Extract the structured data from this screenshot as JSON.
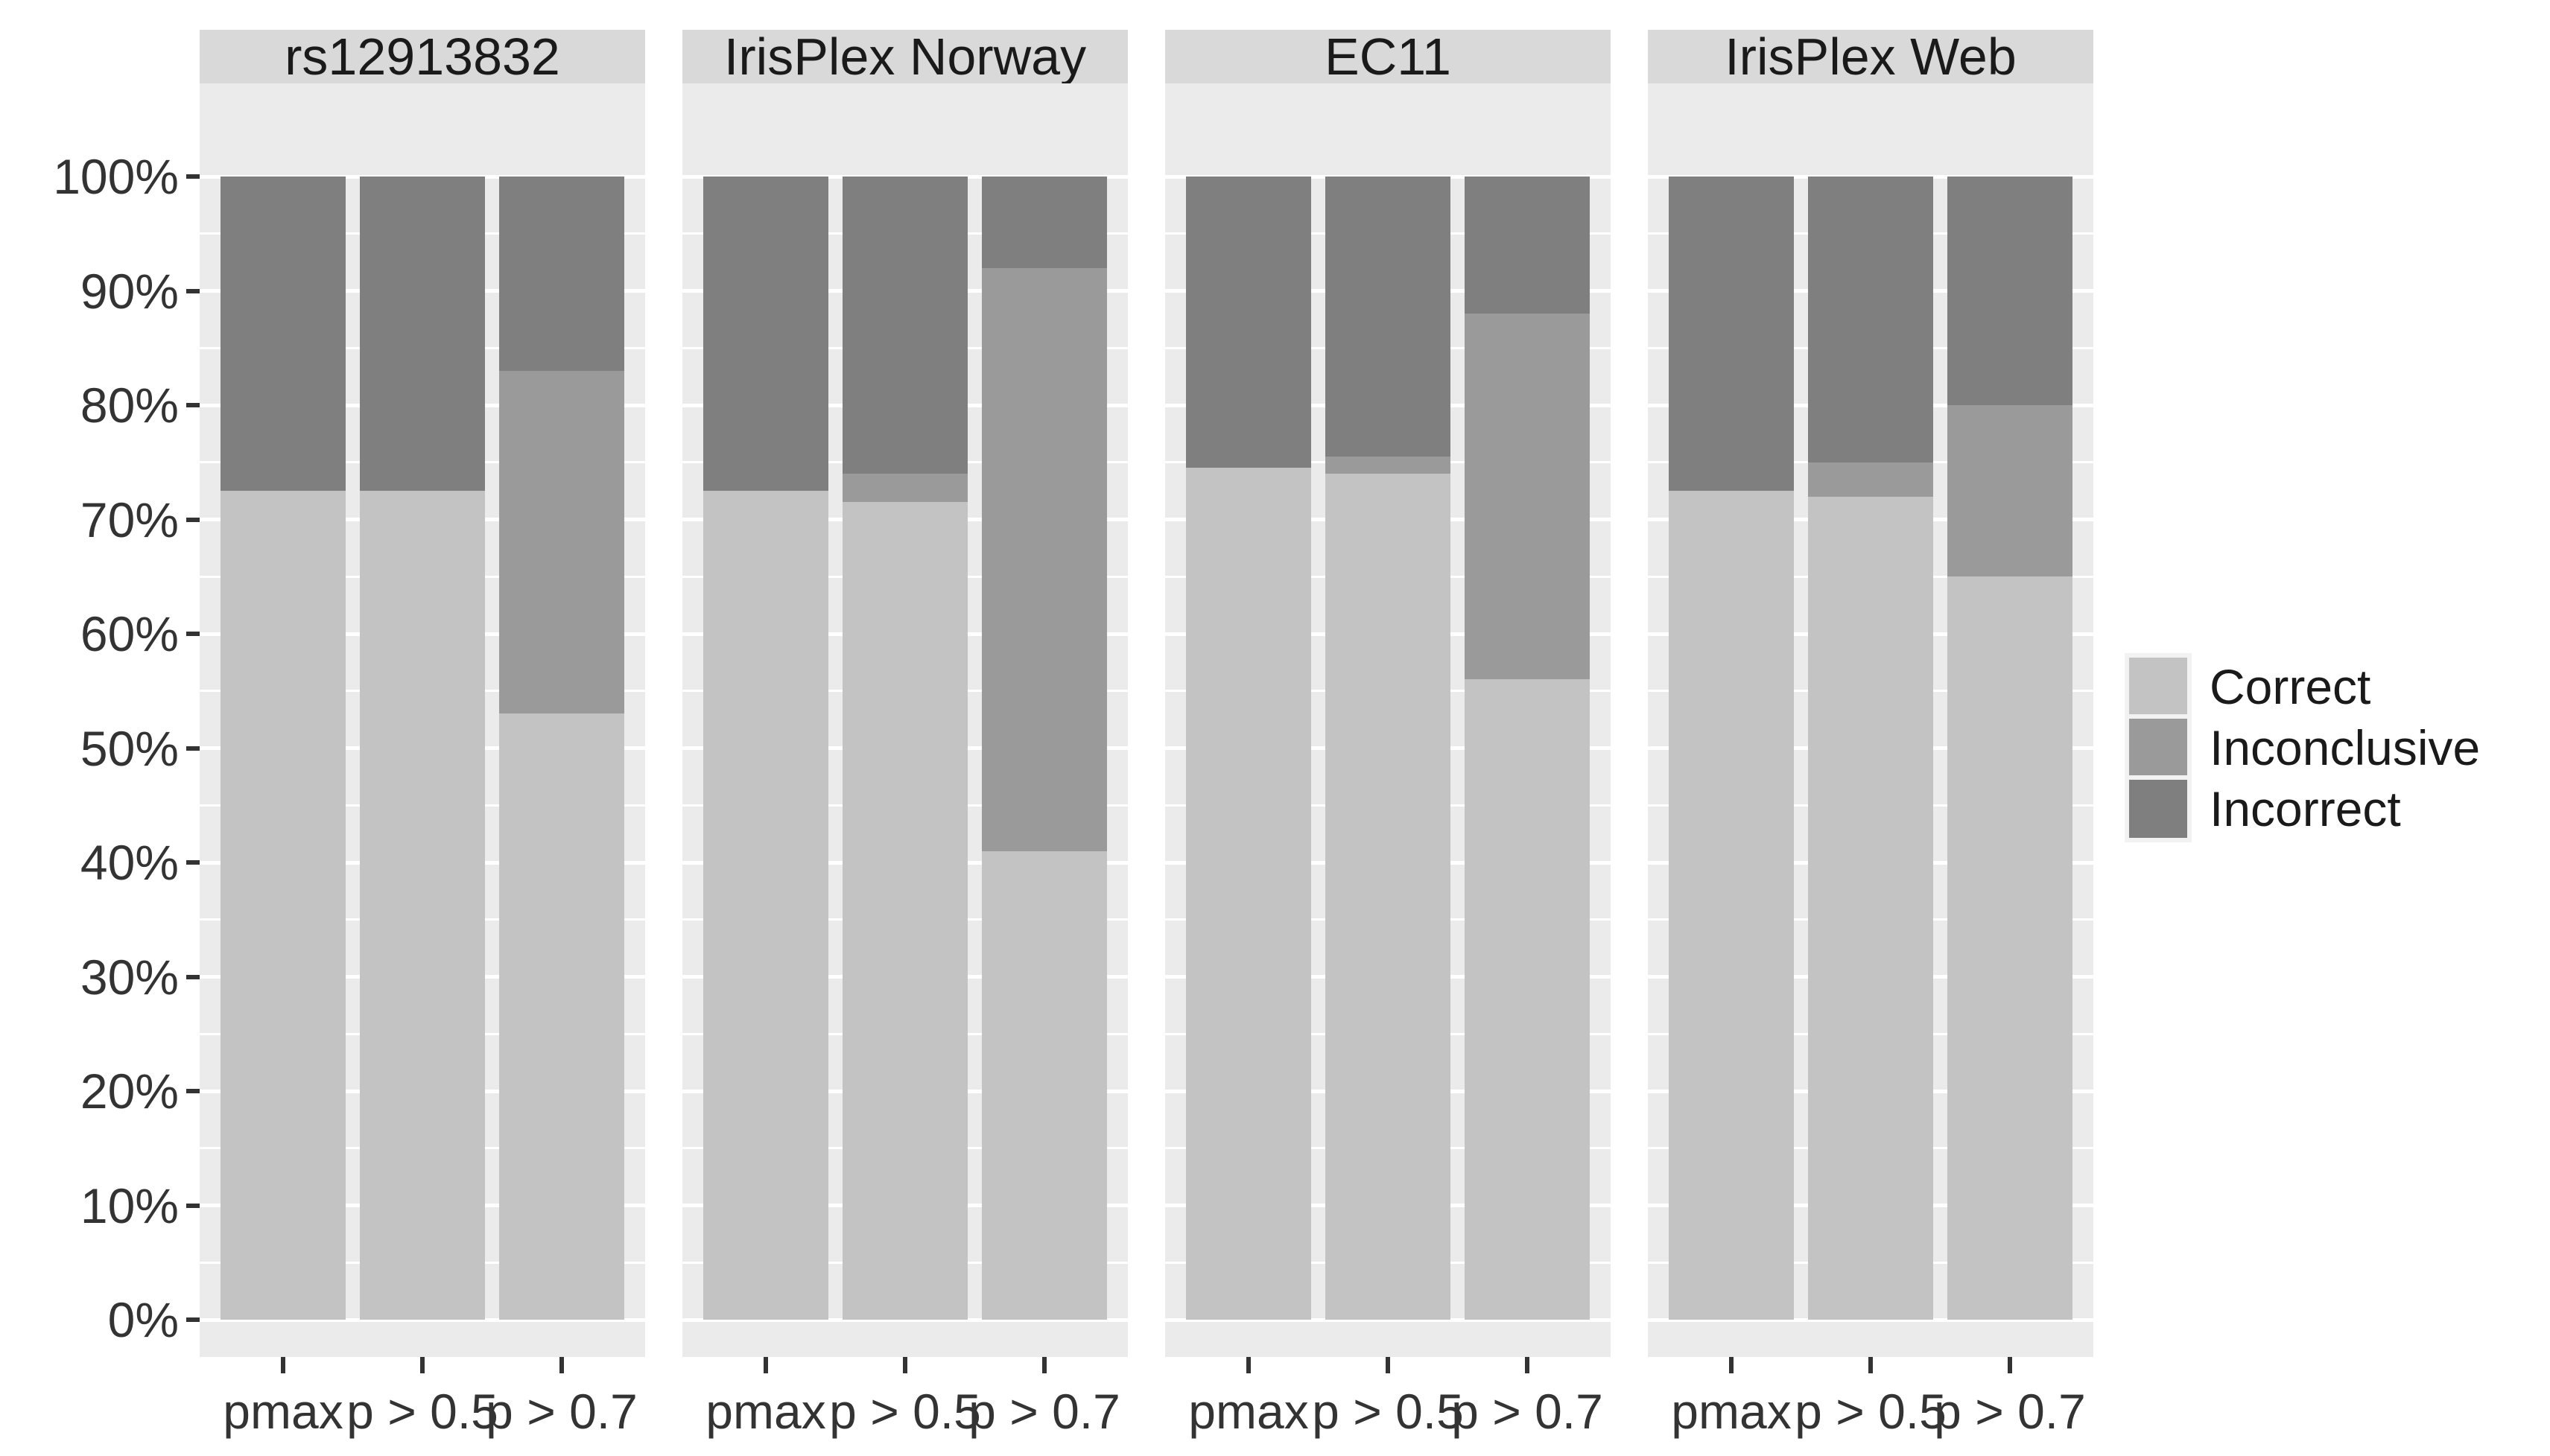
{
  "chart_data": {
    "type": "bar",
    "stacked": true,
    "orientation": "vertical",
    "unit": "percent",
    "title": "",
    "xlabel": "",
    "ylabel": "",
    "ylim": [
      0,
      100
    ],
    "grid": "on",
    "minor_grid": "on",
    "legend_position": "right-center",
    "categories": [
      "pmax",
      "p > 0.5",
      "p > 0.7"
    ],
    "y_tick_pcts": [
      0,
      10,
      20,
      30,
      40,
      50,
      60,
      70,
      80,
      90,
      100
    ],
    "y_tick_labels": [
      "0%",
      "10%",
      "20%",
      "30%",
      "40%",
      "50%",
      "60%",
      "70%",
      "80%",
      "90%",
      "100%"
    ],
    "minor_tick_pcts": [
      5,
      15,
      25,
      35,
      45,
      55,
      65,
      75,
      85,
      95
    ],
    "facets": [
      {
        "label": "rs12913832",
        "series": [
          {
            "name": "Correct",
            "values": [
              72.5,
              72.5,
              53
            ]
          },
          {
            "name": "Inconclusive",
            "values": [
              0,
              0,
              30
            ]
          },
          {
            "name": "Incorrect",
            "values": [
              27.5,
              27.5,
              17
            ]
          }
        ]
      },
      {
        "label": "IrisPlex Norway",
        "series": [
          {
            "name": "Correct",
            "values": [
              72.5,
              71.5,
              41
            ]
          },
          {
            "name": "Inconclusive",
            "values": [
              0,
              2.5,
              51
            ]
          },
          {
            "name": "Incorrect",
            "values": [
              27.5,
              26,
              8
            ]
          }
        ]
      },
      {
        "label": "EC11",
        "series": [
          {
            "name": "Correct",
            "values": [
              74.5,
              74,
              56
            ]
          },
          {
            "name": "Inconclusive",
            "values": [
              0,
              1.5,
              32
            ]
          },
          {
            "name": "Incorrect",
            "values": [
              25.5,
              24.5,
              12
            ]
          }
        ]
      },
      {
        "label": "IrisPlex Web",
        "series": [
          {
            "name": "Correct",
            "values": [
              72.5,
              72,
              65
            ]
          },
          {
            "name": "Inconclusive",
            "values": [
              0,
              3,
              15
            ]
          },
          {
            "name": "Incorrect",
            "values": [
              27.5,
              25,
              20
            ]
          }
        ]
      }
    ],
    "legend": [
      {
        "label": "Correct",
        "color": "#C3C3C3"
      },
      {
        "label": "Inconclusive",
        "color": "#9A9A9A"
      },
      {
        "label": "Incorrect",
        "color": "#7F7F7F"
      }
    ],
    "colors": {
      "Correct": "#C3C3C3",
      "Inconclusive": "#9A9A9A",
      "Incorrect": "#7F7F7F",
      "panel_background": "#EBEBEB",
      "strip_background": "#D9D9D9",
      "gridline": "#FFFFFF",
      "axis_text": "#333333",
      "strip_text": "#1A1A1A",
      "figure_background": "#FFFFFF"
    }
  }
}
